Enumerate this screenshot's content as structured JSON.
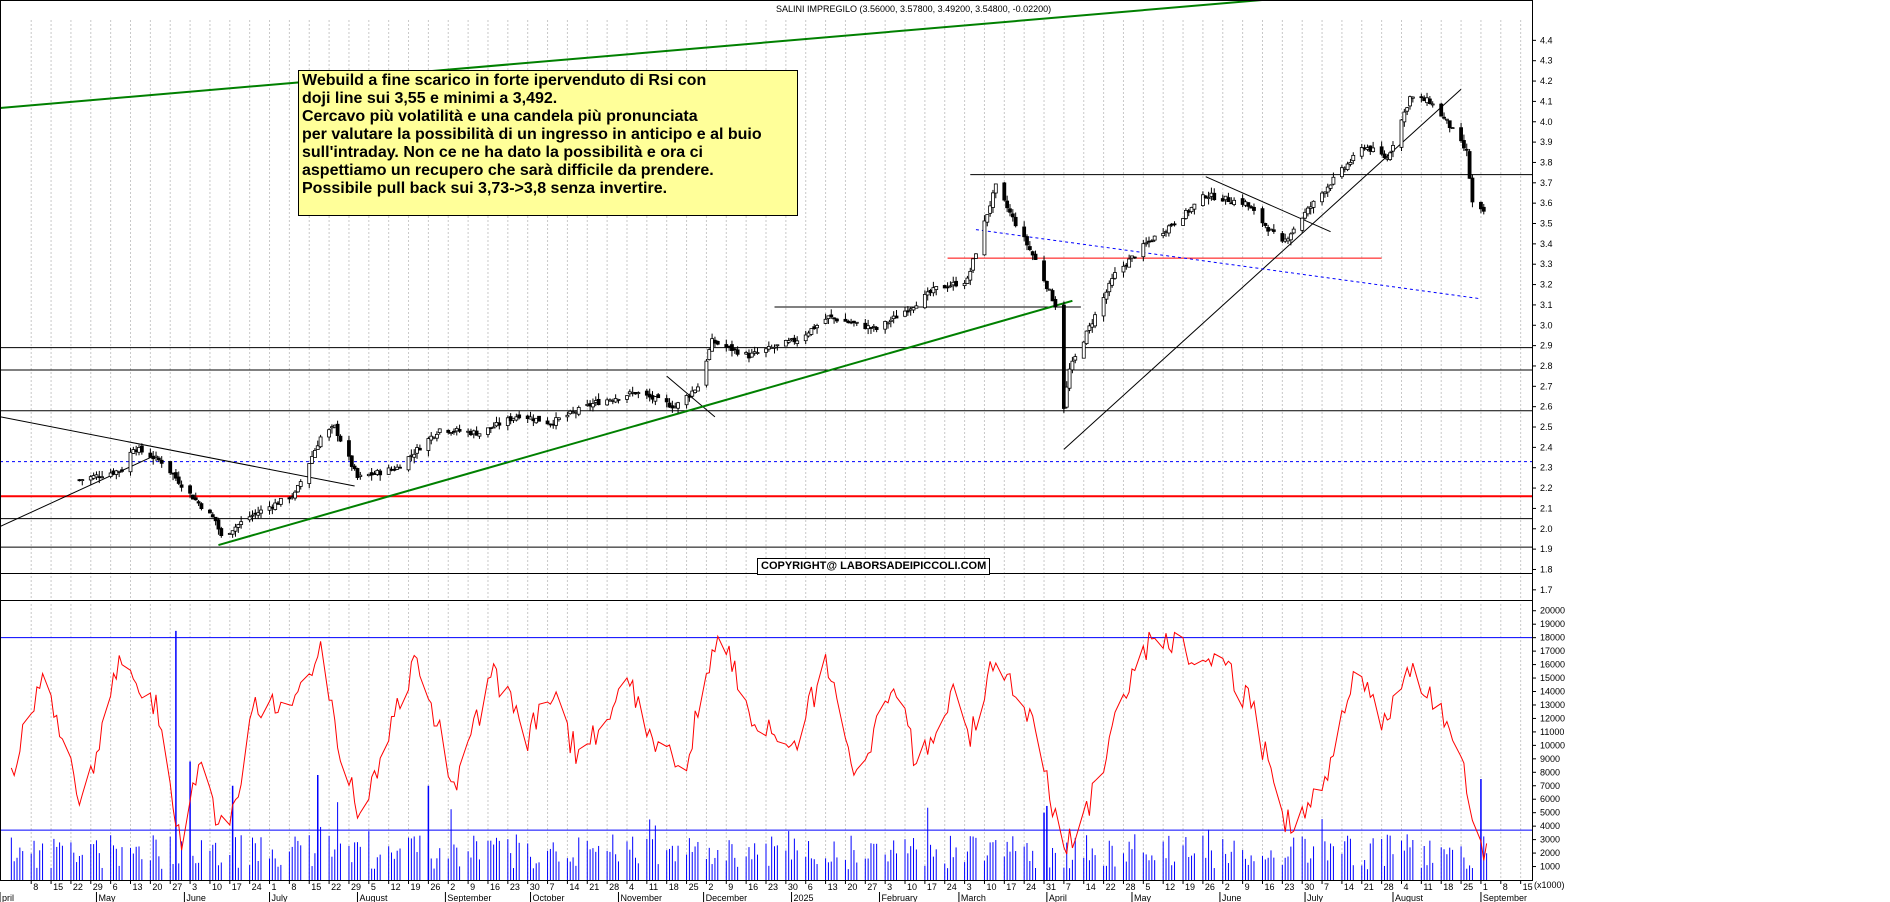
{
  "header": {
    "text": "SALINI IMPREGILO (3.56000, 3.57800, 3.49200, 3.54800, -0.02200)"
  },
  "note": {
    "lines": [
      "Webuild a fine scarico in forte ipervenduto di Rsi con",
      "doji line sui 3,55 e minimi a 3,492.",
      "Cercavo più volatilità e una candela più pronunciata",
      "per valutare la possibilità di un ingresso in anticipo e al buio",
      "sull'intraday. Non ce ne ha dato la possibilità e ora ci",
      "aspettiamo un recupero che sarà difficile da prendere.",
      "Possibile pull back sui 3,73->3,8  senza invertire."
    ]
  },
  "copyright": "COPYRIGHT@ LABORSADEIPICCOLI.COM",
  "colors": {
    "candles": "#000000",
    "support_red": "#ff0000",
    "trend_green": "#008000",
    "rsi_line": "#ff0000",
    "volume_bars": "#0000ff",
    "dotted_blue": "#0000ff",
    "note_bg": "#ffff99"
  },
  "chart_data": [
    {
      "type": "candlestick",
      "title": "SALINI IMPREGILO (3.56000, 3.57800, 3.49200, 3.54800, -0.02200)",
      "last_bar": {
        "open": 3.56,
        "high": 3.578,
        "low": 3.492,
        "close": 3.548,
        "change": -0.022
      },
      "y_ticks": [
        "1.7",
        "1.8",
        "1.9",
        "2.0",
        "2.1",
        "2.2",
        "2.3",
        "2.4",
        "2.5",
        "2.6",
        "2.7",
        "2.8",
        "2.9",
        "3.0",
        "3.1",
        "3.2",
        "3.3",
        "3.4",
        "3.5",
        "3.6",
        "3.7",
        "3.8",
        "3.9",
        "4.0",
        "4.1",
        "4.2",
        "4.3",
        "4.4"
      ],
      "ylim": [
        1.65,
        4.5
      ],
      "close_path": [
        {
          "x": "2024-04-25",
          "y": 2.24
        },
        {
          "x": "2024-05-10",
          "y": 2.29
        },
        {
          "x": "2024-05-14",
          "y": 2.4
        },
        {
          "x": "2024-05-24",
          "y": 2.33
        },
        {
          "x": "2024-06-03",
          "y": 2.17
        },
        {
          "x": "2024-06-12",
          "y": 2.04
        },
        {
          "x": "2024-06-14",
          "y": 1.96
        },
        {
          "x": "2024-06-24",
          "y": 2.06
        },
        {
          "x": "2024-07-10",
          "y": 2.17
        },
        {
          "x": "2024-07-19",
          "y": 2.45
        },
        {
          "x": "2024-07-24",
          "y": 2.5
        },
        {
          "x": "2024-08-01",
          "y": 2.25
        },
        {
          "x": "2024-08-15",
          "y": 2.3
        },
        {
          "x": "2024-08-30",
          "y": 2.49
        },
        {
          "x": "2024-09-13",
          "y": 2.47
        },
        {
          "x": "2024-09-27",
          "y": 2.56
        },
        {
          "x": "2024-10-08",
          "y": 2.52
        },
        {
          "x": "2024-10-24",
          "y": 2.62
        },
        {
          "x": "2024-11-07",
          "y": 2.67
        },
        {
          "x": "2024-11-21",
          "y": 2.6
        },
        {
          "x": "2024-11-29",
          "y": 2.7
        },
        {
          "x": "2024-12-04",
          "y": 2.92
        },
        {
          "x": "2024-12-17",
          "y": 2.85
        },
        {
          "x": "2025-01-03",
          "y": 2.93
        },
        {
          "x": "2025-01-14",
          "y": 3.04
        },
        {
          "x": "2025-01-31",
          "y": 2.98
        },
        {
          "x": "2025-02-11",
          "y": 3.08
        },
        {
          "x": "2025-02-21",
          "y": 3.18
        },
        {
          "x": "2025-03-04",
          "y": 3.22
        },
        {
          "x": "2025-03-11",
          "y": 3.55
        },
        {
          "x": "2025-03-14",
          "y": 3.68
        },
        {
          "x": "2025-03-21",
          "y": 3.5
        },
        {
          "x": "2025-03-28",
          "y": 3.32
        },
        {
          "x": "2025-04-04",
          "y": 3.1
        },
        {
          "x": "2025-04-07",
          "y": 2.6
        },
        {
          "x": "2025-04-09",
          "y": 2.78
        },
        {
          "x": "2025-04-15",
          "y": 2.96
        },
        {
          "x": "2025-04-25",
          "y": 3.25
        },
        {
          "x": "2025-05-06",
          "y": 3.4
        },
        {
          "x": "2025-05-20",
          "y": 3.55
        },
        {
          "x": "2025-05-27",
          "y": 3.64
        },
        {
          "x": "2025-06-10",
          "y": 3.6
        },
        {
          "x": "2025-06-23",
          "y": 3.4
        },
        {
          "x": "2025-07-01",
          "y": 3.55
        },
        {
          "x": "2025-07-10",
          "y": 3.7
        },
        {
          "x": "2025-07-22",
          "y": 3.88
        },
        {
          "x": "2025-07-30",
          "y": 3.82
        },
        {
          "x": "2025-08-07",
          "y": 4.12
        },
        {
          "x": "2025-08-14",
          "y": 4.1
        },
        {
          "x": "2025-08-20",
          "y": 4.0
        },
        {
          "x": "2025-08-27",
          "y": 3.85
        },
        {
          "x": "2025-08-29",
          "y": 3.6
        },
        {
          "x": "2025-09-02",
          "y": 3.548
        }
      ],
      "horizontal_lines": [
        {
          "y": 1.78,
          "color": "black"
        },
        {
          "y": 1.91,
          "color": "black"
        },
        {
          "y": 2.05,
          "color": "black"
        },
        {
          "y": 2.16,
          "color": "red"
        },
        {
          "y": 2.33,
          "color": "blue-dotted"
        },
        {
          "y": 2.58,
          "color": "black"
        },
        {
          "y": 2.78,
          "color": "black"
        },
        {
          "y": 2.89,
          "color": "black"
        },
        {
          "y": 3.74,
          "color": "black"
        }
      ]
    },
    {
      "type": "line",
      "y_ticks": [
        "1000",
        "2000",
        "3000",
        "4000",
        "5000",
        "6000",
        "7000",
        "8000",
        "9000",
        "10000",
        "11000",
        "12000",
        "13000",
        "14000",
        "15000",
        "16000",
        "17000",
        "18000",
        "19000",
        "20000"
      ],
      "ylim": [
        0,
        20500
      ],
      "y_unit_label": "(x1000)",
      "reference_lines": [
        18000,
        3700
      ],
      "x_labels": [
        "8",
        "15",
        "22",
        "29",
        "6",
        "13",
        "20",
        "27",
        "3",
        "10",
        "17",
        "24",
        "1",
        "8",
        "15",
        "22",
        "29",
        "5",
        "12",
        "19",
        "26",
        "2",
        "9",
        "16",
        "23",
        "30",
        "7",
        "14",
        "21",
        "28",
        "4",
        "11",
        "18",
        "25",
        "2",
        "9",
        "16",
        "23",
        "30",
        "6",
        "13",
        "20",
        "27",
        "3",
        "10",
        "17",
        "24",
        "3",
        "10",
        "17",
        "24",
        "31",
        "7",
        "14",
        "22",
        "28",
        "5",
        "12",
        "19",
        "26",
        "2",
        "9",
        "16",
        "23",
        "30",
        "7",
        "14",
        "21",
        "28",
        "4",
        "11",
        "18",
        "25",
        "1",
        "8",
        "15"
      ],
      "month_labels": [
        "pril",
        "May",
        "June",
        "July",
        "August",
        "September",
        "October",
        "November",
        "December",
        "2025",
        "February",
        "March",
        "April",
        "May",
        "June",
        "July",
        "August",
        "September"
      ]
    }
  ]
}
